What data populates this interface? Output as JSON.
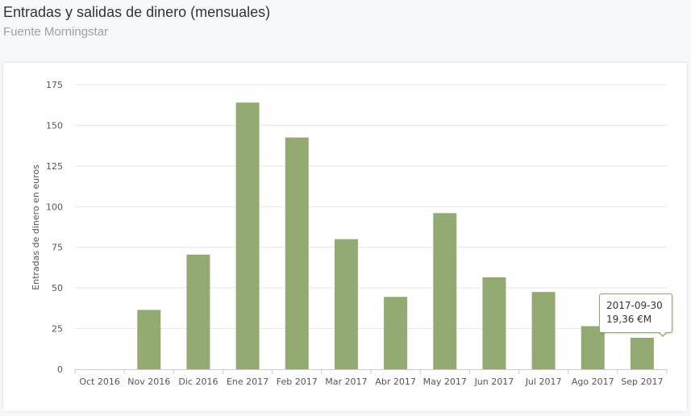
{
  "header": {
    "title": "Entradas y salidas de dinero (mensuales)",
    "subtitle": "Fuente Morningstar"
  },
  "tooltip": {
    "date": "2017-09-30",
    "value": "19,36 €M"
  },
  "colors": {
    "bar": "#93ab72",
    "grid": "#e6e6e6",
    "axis": "#cccccc"
  },
  "chart_data": {
    "type": "bar",
    "title": "Entradas y salidas de dinero (mensuales)",
    "subtitle": "Fuente Morningstar",
    "xlabel": "",
    "ylabel": "Entradas de dinero en euros",
    "ylim": [
      0,
      175
    ],
    "yticks": [
      0,
      25,
      50,
      75,
      100,
      125,
      150,
      175
    ],
    "grid": true,
    "legend": "none",
    "categories": [
      "Oct 2016",
      "Nov 2016",
      "Dic 2016",
      "Ene 2017",
      "Feb 2017",
      "Mar 2017",
      "Abr 2017",
      "May 2017",
      "Jun 2017",
      "Jul 2017",
      "Ago 2017",
      "Sep 2017"
    ],
    "values": [
      0,
      36.5,
      70.5,
      164,
      142.5,
      80,
      44.5,
      96,
      56.5,
      47.5,
      26.5,
      19.36
    ]
  }
}
